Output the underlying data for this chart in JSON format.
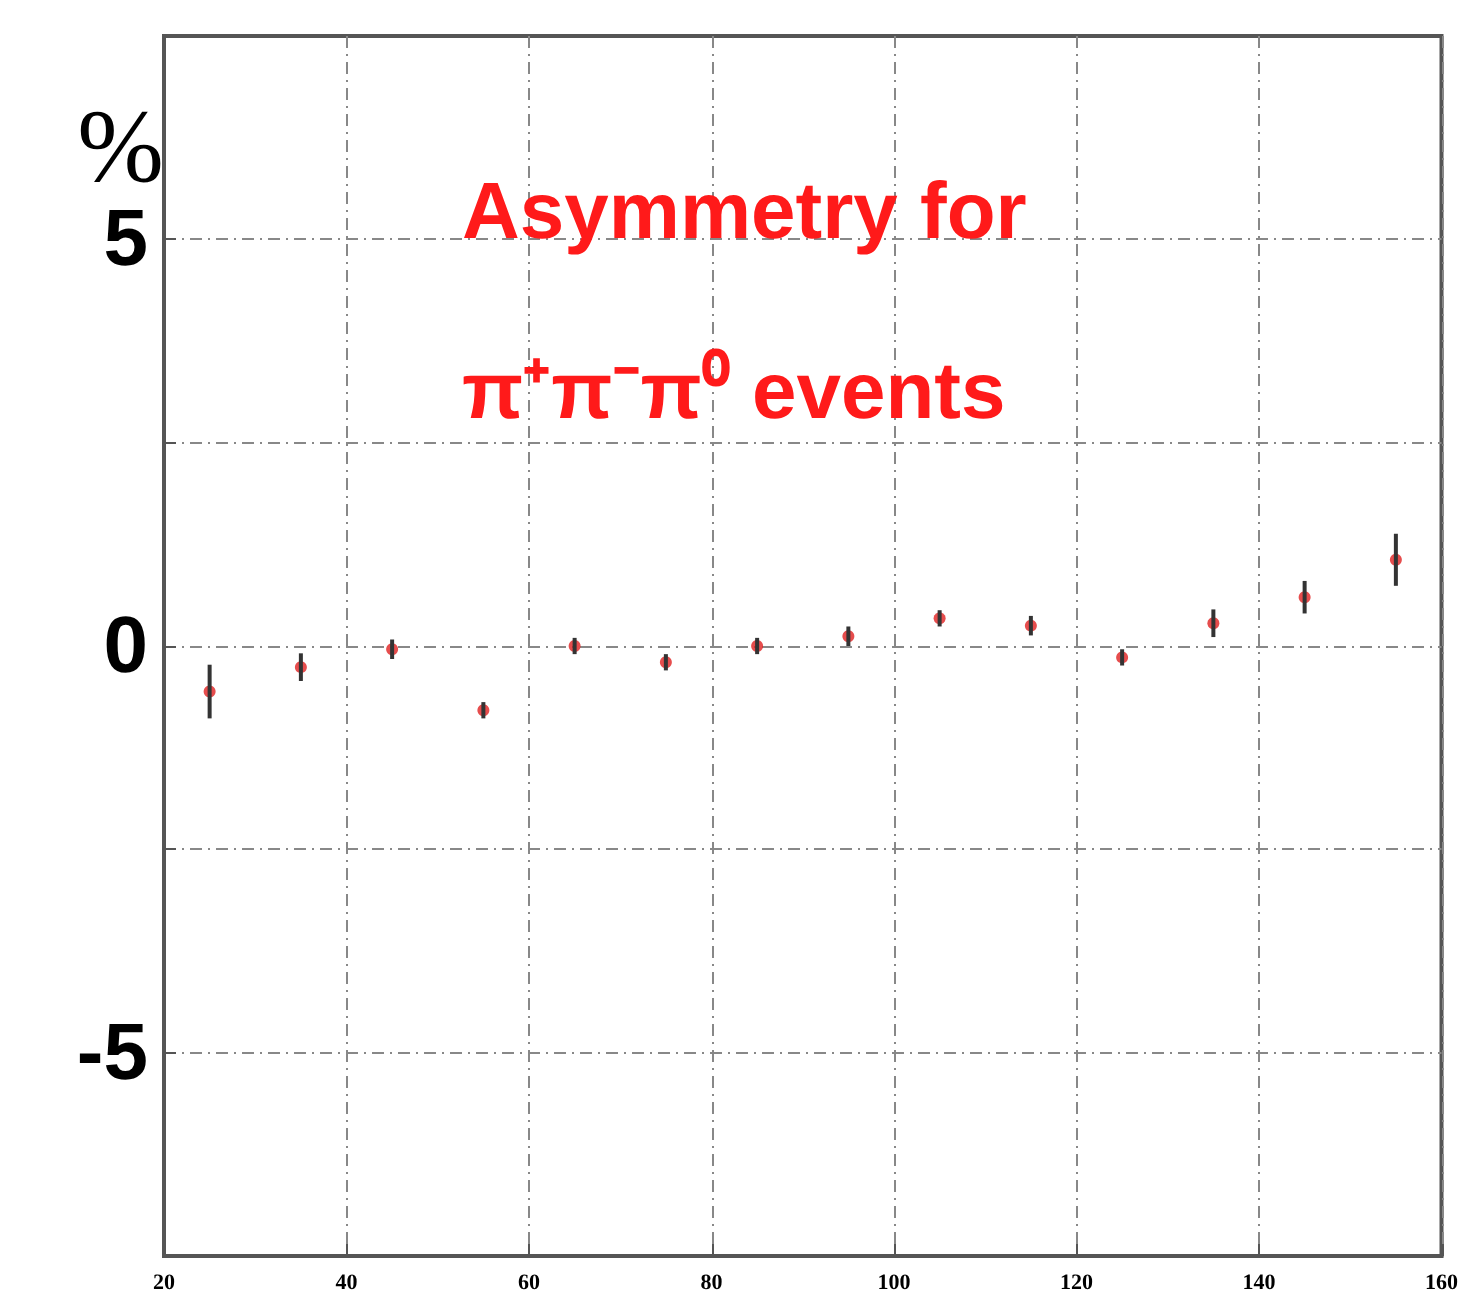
{
  "chart_data": {
    "type": "scatter",
    "title": "Asymmetry for\nπ⁺π⁻π⁰ events",
    "ylabel": "%",
    "x": [
      25,
      35,
      45,
      55,
      65,
      75,
      85,
      95,
      105,
      115,
      125,
      135,
      145,
      155
    ],
    "series": [
      {
        "color": "#e02020",
        "values": [
          -0.56,
          -0.26,
          -0.04,
          -0.79,
          0.0,
          -0.2,
          0.0,
          0.12,
          0.34,
          0.25,
          -0.14,
          0.28,
          0.6,
          1.06
        ],
        "errors": [
          0.33,
          0.17,
          0.12,
          0.1,
          0.1,
          0.1,
          0.1,
          0.12,
          0.1,
          0.12,
          0.1,
          0.17,
          0.2,
          0.32
        ]
      }
    ],
    "xlim": [
      20,
      160
    ],
    "xticks": [
      20,
      40,
      60,
      80,
      100,
      120,
      140,
      160
    ],
    "ylim": [
      -7.5,
      7.5
    ],
    "yticks": [
      -5,
      {
        "value": -2.5,
        "label": null
      },
      0,
      {
        "value": 2.5,
        "label": null
      },
      5
    ],
    "grid": true,
    "marker": "circle"
  }
}
